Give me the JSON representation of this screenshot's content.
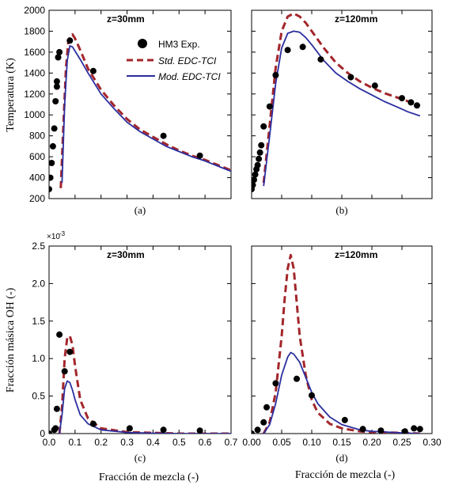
{
  "figure": {
    "ylabel_top": "Temperatura  (K)",
    "ylabel_bottom": "Fracción másica  OH  (-)",
    "xlabel_left": "Fracción  de mezcla  (-)",
    "xlabel_right": "Fracción  de mezcla  (-)"
  },
  "legend": {
    "exp": "HM3 Exp.",
    "std": "Std. EDC-TCI",
    "mod": "Mod. EDC-TCI"
  },
  "colors": {
    "exp": "#000000",
    "std": "#a3262b",
    "mod": "#2b2e9e"
  },
  "chart_data": [
    {
      "id": "a",
      "panel_label": "(a)",
      "title": "z=30mm",
      "type": "line",
      "xlim": [
        0,
        0.7
      ],
      "ylim": [
        200,
        2000
      ],
      "yticks": [
        200,
        400,
        600,
        800,
        1000,
        1200,
        1400,
        1600,
        1800,
        2000
      ],
      "xticks": [
        0,
        0.1,
        0.2,
        0.3,
        0.4,
        0.5,
        0.6,
        0.7
      ],
      "show_xtick_labels": false,
      "show_ytick_labels": true,
      "multiplier": "",
      "series": [
        {
          "name": "HM3 Exp.",
          "kind": "scatter",
          "x": [
            0.0,
            0.005,
            0.01,
            0.015,
            0.02,
            0.025,
            0.03,
            0.03,
            0.035,
            0.04,
            0.08,
            0.17,
            0.44,
            0.58
          ],
          "y": [
            290,
            400,
            540,
            700,
            870,
            1130,
            1270,
            1320,
            1550,
            1600,
            1710,
            1420,
            800,
            610
          ]
        },
        {
          "name": "Std. EDC-TCI",
          "kind": "line",
          "x": [
            0.045,
            0.055,
            0.065,
            0.075,
            0.09,
            0.1,
            0.12,
            0.15,
            0.2,
            0.25,
            0.3,
            0.35,
            0.4,
            0.45,
            0.5,
            0.55,
            0.6,
            0.65,
            0.7
          ],
          "y": [
            300,
            900,
            1450,
            1720,
            1770,
            1730,
            1620,
            1440,
            1240,
            1090,
            960,
            860,
            790,
            720,
            660,
            610,
            570,
            520,
            470
          ]
        },
        {
          "name": "Mod. EDC-TCI",
          "kind": "line",
          "x": [
            0.05,
            0.06,
            0.07,
            0.08,
            0.09,
            0.1,
            0.12,
            0.15,
            0.2,
            0.25,
            0.3,
            0.35,
            0.4,
            0.45,
            0.5,
            0.55,
            0.6,
            0.65,
            0.7
          ],
          "y": [
            350,
            1100,
            1520,
            1660,
            1650,
            1610,
            1530,
            1400,
            1200,
            1060,
            930,
            840,
            770,
            700,
            650,
            600,
            560,
            510,
            460
          ]
        }
      ]
    },
    {
      "id": "b",
      "panel_label": "(b)",
      "title": "z=120mm",
      "type": "line",
      "xlim": [
        0,
        0.3
      ],
      "ylim": [
        200,
        2000
      ],
      "yticks": [
        200,
        400,
        600,
        800,
        1000,
        1200,
        1400,
        1600,
        1800,
        2000
      ],
      "xticks": [
        0,
        0.05,
        0.1,
        0.15,
        0.2,
        0.25,
        0.3
      ],
      "show_xtick_labels": false,
      "show_ytick_labels": false,
      "multiplier": "",
      "series": [
        {
          "name": "HM3 Exp.",
          "kind": "scatter",
          "x": [
            0.0,
            0.002,
            0.004,
            0.006,
            0.008,
            0.01,
            0.012,
            0.014,
            0.016,
            0.02,
            0.03,
            0.04,
            0.06,
            0.085,
            0.115,
            0.165,
            0.205,
            0.25,
            0.265,
            0.275
          ],
          "y": [
            290,
            330,
            380,
            430,
            480,
            520,
            580,
            640,
            710,
            890,
            1080,
            1380,
            1620,
            1650,
            1530,
            1360,
            1280,
            1160,
            1120,
            1090
          ]
        },
        {
          "name": "Std. EDC-TCI",
          "kind": "line",
          "x": [
            0.02,
            0.03,
            0.04,
            0.05,
            0.06,
            0.07,
            0.08,
            0.09,
            0.1,
            0.12,
            0.14,
            0.16,
            0.18,
            0.2,
            0.22,
            0.24,
            0.26,
            0.28
          ],
          "y": [
            350,
            900,
            1450,
            1800,
            1940,
            1970,
            1940,
            1880,
            1800,
            1640,
            1500,
            1400,
            1320,
            1260,
            1210,
            1170,
            1130,
            1090
          ]
        },
        {
          "name": "Mod. EDC-TCI",
          "kind": "line",
          "x": [
            0.02,
            0.03,
            0.04,
            0.05,
            0.06,
            0.07,
            0.08,
            0.09,
            0.1,
            0.12,
            0.14,
            0.16,
            0.18,
            0.2,
            0.22,
            0.24,
            0.26,
            0.28
          ],
          "y": [
            320,
            800,
            1300,
            1640,
            1780,
            1800,
            1790,
            1740,
            1670,
            1520,
            1400,
            1320,
            1250,
            1190,
            1130,
            1080,
            1030,
            990
          ]
        }
      ]
    },
    {
      "id": "c",
      "panel_label": "(c)",
      "title": "z=30mm",
      "type": "line",
      "xlim": [
        0,
        0.7
      ],
      "ylim": [
        0,
        2.5
      ],
      "yticks": [
        0,
        0.5,
        1.0,
        1.5,
        2.0,
        2.5
      ],
      "ytick_labels": [
        "0",
        "0.5",
        "1.0",
        "1.5",
        "2.0",
        "2.5"
      ],
      "xticks": [
        0,
        0.1,
        0.2,
        0.3,
        0.4,
        0.5,
        0.6,
        0.7
      ],
      "xtick_labels": [
        "0.0",
        "0.1",
        "0.2",
        "0.3",
        "0.4",
        "0.5",
        "0.6",
        "0.7"
      ],
      "show_xtick_labels": true,
      "show_ytick_labels": true,
      "multiplier": "×10",
      "multiplier_exp": "-3",
      "series": [
        {
          "name": "HM3 Exp.",
          "kind": "scatter",
          "x": [
            0.0,
            0.02,
            0.025,
            0.03,
            0.04,
            0.06,
            0.08,
            0.17,
            0.31,
            0.44,
            0.58
          ],
          "y": [
            0.0,
            0.05,
            0.07,
            0.33,
            1.32,
            0.83,
            1.09,
            0.13,
            0.07,
            0.05,
            0.04
          ]
        },
        {
          "name": "Std. EDC-TCI",
          "kind": "line",
          "x": [
            0.04,
            0.05,
            0.06,
            0.07,
            0.08,
            0.09,
            0.1,
            0.12,
            0.15,
            0.2,
            0.3,
            0.4,
            0.5,
            0.6,
            0.7
          ],
          "y": [
            0.0,
            0.35,
            1.0,
            1.28,
            1.3,
            1.18,
            0.9,
            0.45,
            0.2,
            0.07,
            0.02,
            0.01,
            0.0,
            0.0,
            0.0
          ]
        },
        {
          "name": "Mod. EDC-TCI",
          "kind": "line",
          "x": [
            0.04,
            0.05,
            0.06,
            0.07,
            0.08,
            0.09,
            0.1,
            0.12,
            0.15,
            0.2,
            0.3,
            0.4,
            0.5,
            0.6,
            0.7
          ],
          "y": [
            0.0,
            0.25,
            0.6,
            0.7,
            0.68,
            0.58,
            0.45,
            0.25,
            0.13,
            0.05,
            0.015,
            0.005,
            0.0,
            0.0,
            0.0
          ]
        }
      ]
    },
    {
      "id": "d",
      "panel_label": "(d)",
      "title": "z=120mm",
      "type": "line",
      "xlim": [
        0,
        0.3
      ],
      "ylim": [
        0,
        2.5
      ],
      "yticks": [
        0,
        0.5,
        1.0,
        1.5,
        2.0,
        2.5
      ],
      "xticks": [
        0,
        0.05,
        0.1,
        0.15,
        0.2,
        0.25,
        0.3
      ],
      "xtick_labels": [
        "0.00",
        "0.05",
        "0.10",
        "0.15",
        "0.20",
        "0.25",
        "0.30"
      ],
      "show_xtick_labels": true,
      "show_ytick_labels": false,
      "multiplier": "",
      "series": [
        {
          "name": "HM3 Exp.",
          "kind": "scatter",
          "x": [
            0.0,
            0.01,
            0.02,
            0.025,
            0.04,
            0.075,
            0.1,
            0.155,
            0.185,
            0.215,
            0.255,
            0.27,
            0.28
          ],
          "y": [
            0.0,
            0.05,
            0.15,
            0.35,
            0.67,
            0.73,
            0.51,
            0.18,
            0.06,
            0.04,
            0.03,
            0.07,
            0.06
          ]
        },
        {
          "name": "Std. EDC-TCI",
          "kind": "line",
          "x": [
            0.02,
            0.03,
            0.04,
            0.05,
            0.055,
            0.06,
            0.065,
            0.07,
            0.075,
            0.08,
            0.09,
            0.1,
            0.11,
            0.13,
            0.15,
            0.18,
            0.2,
            0.25,
            0.28
          ],
          "y": [
            0.0,
            0.15,
            0.55,
            1.3,
            1.8,
            2.2,
            2.38,
            2.2,
            1.75,
            1.3,
            0.78,
            0.45,
            0.28,
            0.13,
            0.07,
            0.03,
            0.02,
            0.01,
            0.0
          ]
        },
        {
          "name": "Mod. EDC-TCI",
          "kind": "line",
          "x": [
            0.02,
            0.03,
            0.04,
            0.05,
            0.06,
            0.065,
            0.07,
            0.08,
            0.09,
            0.1,
            0.11,
            0.13,
            0.15,
            0.18,
            0.2,
            0.25,
            0.28
          ],
          "y": [
            0.0,
            0.12,
            0.4,
            0.78,
            1.02,
            1.08,
            1.06,
            0.95,
            0.75,
            0.55,
            0.4,
            0.22,
            0.12,
            0.05,
            0.03,
            0.01,
            0.0
          ]
        }
      ]
    }
  ]
}
